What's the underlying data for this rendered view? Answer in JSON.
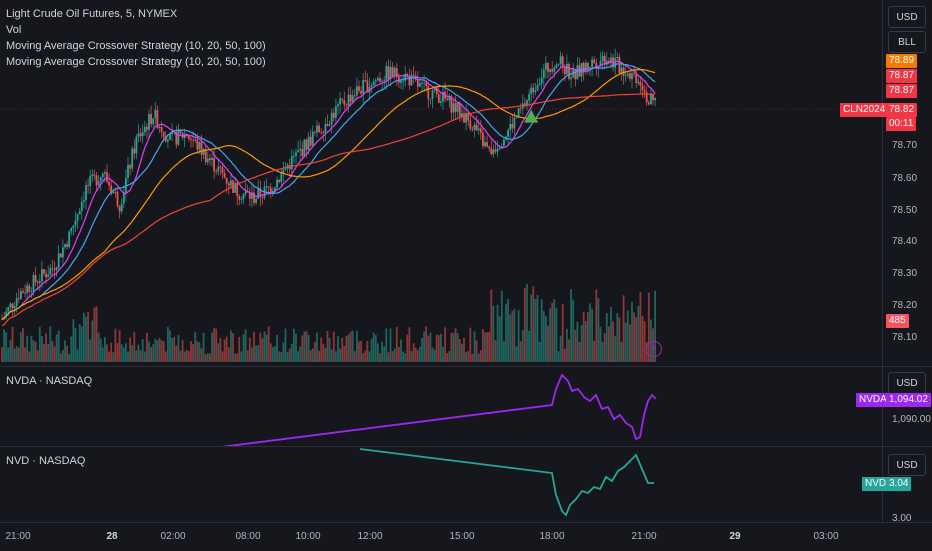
{
  "legend": {
    "title": "Light Crude Oil Futures, 5, NYMEX",
    "vol": "Vol",
    "indicator1": "Moving Average Crossover Strategy (10, 20, 50, 100)",
    "indicator2": "Moving Average Crossover Strategy (10, 20, 50, 100)"
  },
  "main_axis": {
    "currency": "USD",
    "mode": "BLL",
    "ticks": [
      "78.70",
      "78.60",
      "78.50",
      "78.40",
      "78.30",
      "78.20",
      "78.10"
    ],
    "price_tags": [
      {
        "value": "78.89",
        "color": "#f57c00"
      },
      {
        "value": "78.87",
        "color": "#f23645"
      },
      {
        "value": "78.87",
        "color": "#f23645"
      },
      {
        "value": "78.82",
        "color": "#f23645"
      },
      {
        "value": "00:11",
        "color": "#f23645"
      }
    ],
    "symbol_tag": "CLN2024",
    "volume_tag": "485",
    "volume_tag_color": "#f7525f"
  },
  "nvda_pane": {
    "label": "NVDA · NASDAQ",
    "currency": "USD",
    "symbol_tag": "NVDA",
    "value_tag": "1,094.02",
    "tick": "1,090.00",
    "color": "#9c27f0"
  },
  "nvd_pane": {
    "label": "NVD · NASDAQ",
    "currency": "USD",
    "symbol_tag": "NVD",
    "value_tag": "3.04",
    "tick": "3.00",
    "color": "#26a69a"
  },
  "time_axis": [
    {
      "label": "21:00",
      "bold": false
    },
    {
      "label": "28",
      "bold": true
    },
    {
      "label": "02:00",
      "bold": false
    },
    {
      "label": "08:00",
      "bold": false
    },
    {
      "label": "10:00",
      "bold": false
    },
    {
      "label": "12:00",
      "bold": false
    },
    {
      "label": "15:00",
      "bold": false
    },
    {
      "label": "18:00",
      "bold": false
    },
    {
      "label": "21:00",
      "bold": false
    },
    {
      "label": "29",
      "bold": true
    },
    {
      "label": "03:00",
      "bold": false
    }
  ],
  "chart_data": {
    "type": "candlestick",
    "ylim": [
      78.05,
      78.95
    ],
    "colors": {
      "up": "#26a69a",
      "down": "#ef5350",
      "ma10": "#e040fb",
      "ma20": "#42a5f5",
      "ma50": "#ff9800",
      "ma100": "#f44336"
    },
    "price_path": [
      [
        0,
        78.14
      ],
      [
        2,
        78.22
      ],
      [
        4,
        78.26
      ],
      [
        6,
        78.3
      ],
      [
        8,
        78.4
      ],
      [
        10,
        78.55
      ],
      [
        12,
        78.6
      ],
      [
        14,
        78.5
      ],
      [
        16,
        78.7
      ],
      [
        18,
        78.78
      ],
      [
        20,
        78.7
      ],
      [
        22,
        78.72
      ],
      [
        24,
        78.66
      ],
      [
        26,
        78.6
      ],
      [
        28,
        78.54
      ],
      [
        30,
        78.52
      ],
      [
        32,
        78.55
      ],
      [
        34,
        78.62
      ],
      [
        36,
        78.68
      ],
      [
        38,
        78.74
      ],
      [
        40,
        78.8
      ],
      [
        42,
        78.85
      ],
      [
        44,
        78.88
      ],
      [
        46,
        78.91
      ],
      [
        48,
        78.9
      ],
      [
        50,
        78.86
      ],
      [
        52,
        78.84
      ],
      [
        54,
        78.8
      ],
      [
        56,
        78.75
      ],
      [
        58,
        78.66
      ],
      [
        60,
        78.72
      ],
      [
        62,
        78.8
      ],
      [
        64,
        78.9
      ],
      [
        66,
        78.95
      ],
      [
        68,
        78.9
      ],
      [
        70,
        78.94
      ],
      [
        72,
        78.96
      ],
      [
        74,
        78.92
      ],
      [
        76,
        78.89
      ],
      [
        77,
        78.82
      ]
    ],
    "signal": {
      "type": "buy-arrow",
      "t": 63,
      "y": 78.77
    }
  }
}
